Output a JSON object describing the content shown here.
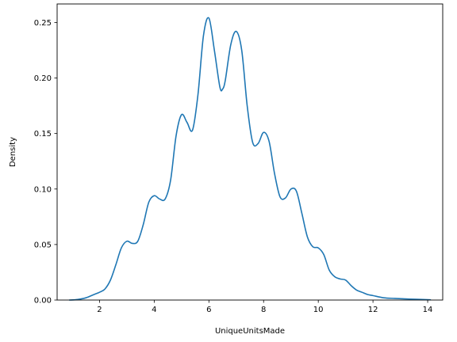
{
  "chart_data": {
    "type": "line",
    "xlabel": "UniqueUnitsMade",
    "ylabel": "Density",
    "xlim": [
      0.45,
      14.55
    ],
    "ylim": [
      0,
      0.2667
    ],
    "xticks": [
      2,
      4,
      6,
      8,
      10,
      12,
      14
    ],
    "yticks": [
      0.0,
      0.05,
      0.1,
      0.15,
      0.2,
      0.25
    ],
    "xtick_labels": [
      "2",
      "4",
      "6",
      "8",
      "10",
      "12",
      "14"
    ],
    "ytick_labels": [
      "0.00",
      "0.05",
      "0.10",
      "0.15",
      "0.20",
      "0.25"
    ],
    "grid": false,
    "series": [
      {
        "color": "#1f77b4",
        "x": [
          0.9,
          1.2,
          1.5,
          1.8,
          2.0,
          2.2,
          2.4,
          2.6,
          2.8,
          3.0,
          3.2,
          3.4,
          3.6,
          3.8,
          4.0,
          4.2,
          4.4,
          4.6,
          4.8,
          5.0,
          5.2,
          5.4,
          5.6,
          5.8,
          6.0,
          6.2,
          6.4,
          6.5,
          6.6,
          6.8,
          7.0,
          7.2,
          7.4,
          7.6,
          7.8,
          8.0,
          8.2,
          8.4,
          8.6,
          8.8,
          9.0,
          9.2,
          9.4,
          9.6,
          9.8,
          10.0,
          10.2,
          10.4,
          10.6,
          10.8,
          11.0,
          11.2,
          11.4,
          11.6,
          11.8,
          12.0,
          12.4,
          12.8,
          13.2,
          13.6,
          14.1
        ],
        "y": [
          0.0,
          0.0005,
          0.002,
          0.005,
          0.007,
          0.01,
          0.018,
          0.032,
          0.047,
          0.053,
          0.051,
          0.053,
          0.068,
          0.088,
          0.094,
          0.091,
          0.091,
          0.108,
          0.148,
          0.167,
          0.16,
          0.153,
          0.185,
          0.238,
          0.254,
          0.225,
          0.192,
          0.19,
          0.198,
          0.23,
          0.242,
          0.225,
          0.175,
          0.142,
          0.141,
          0.151,
          0.143,
          0.114,
          0.093,
          0.092,
          0.1,
          0.098,
          0.078,
          0.057,
          0.048,
          0.047,
          0.041,
          0.027,
          0.021,
          0.019,
          0.018,
          0.013,
          0.009,
          0.007,
          0.005,
          0.004,
          0.002,
          0.0015,
          0.001,
          0.0007,
          0.0002
        ]
      }
    ]
  }
}
